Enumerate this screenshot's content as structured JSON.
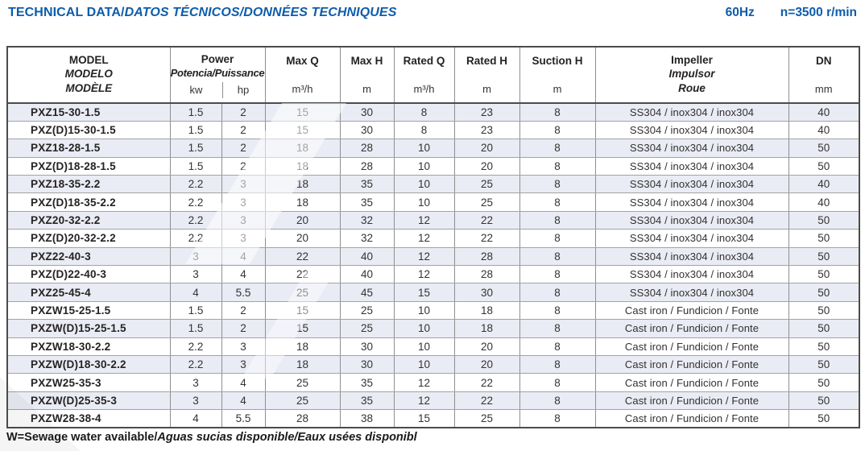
{
  "page": {
    "title_main": "TECHNICAL DATA/",
    "title_italic": "DATOS TÉCNICOS/DONNÉES TECHNIQUES",
    "frequency": "60Hz",
    "speed": "n=3500 r/min",
    "footer_main": "W=Sewage water available/",
    "footer_italic": "Aguas sucias disponible/Eaux usées disponibl",
    "accent_color": "#0d5cab",
    "row_shade_color": "#e9ecf4"
  },
  "table": {
    "header": {
      "model_lines": [
        "MODEL",
        "MODELO",
        "MODÈLE"
      ],
      "power_label": "Power",
      "power_sub": "Potencia/Puissance",
      "power_units": [
        "kw",
        "hp"
      ],
      "metric_cols": [
        {
          "label": "Max Q",
          "unit": "m³/h"
        },
        {
          "label": "Max H",
          "unit": "m"
        },
        {
          "label": "Rated Q",
          "unit": "m³/h"
        },
        {
          "label": "Rated H",
          "unit": "m"
        },
        {
          "label": "Suction H",
          "unit": "m"
        }
      ],
      "impeller_lines": [
        "Impeller",
        "Impulsor",
        "Roue"
      ],
      "dn": {
        "label": "DN",
        "unit": "mm"
      }
    },
    "rows": [
      {
        "model": "PXZ15-30-1.5",
        "kw": "1.5",
        "hp": "2",
        "max_q": "15",
        "max_h": "30",
        "rated_q": "8",
        "rated_h": "23",
        "suction_h": "8",
        "impeller": "SS304 / inox304 / inox304",
        "dn": "40"
      },
      {
        "model": "PXZ(D)15-30-1.5",
        "kw": "1.5",
        "hp": "2",
        "max_q": "15",
        "max_h": "30",
        "rated_q": "8",
        "rated_h": "23",
        "suction_h": "8",
        "impeller": "SS304 / inox304 / inox304",
        "dn": "40"
      },
      {
        "model": "PXZ18-28-1.5",
        "kw": "1.5",
        "hp": "2",
        "max_q": "18",
        "max_h": "28",
        "rated_q": "10",
        "rated_h": "20",
        "suction_h": "8",
        "impeller": "SS304 / inox304 / inox304",
        "dn": "50"
      },
      {
        "model": "PXZ(D)18-28-1.5",
        "kw": "1.5",
        "hp": "2",
        "max_q": "18",
        "max_h": "28",
        "rated_q": "10",
        "rated_h": "20",
        "suction_h": "8",
        "impeller": "SS304 / inox304 / inox304",
        "dn": "50"
      },
      {
        "model": "PXZ18-35-2.2",
        "kw": "2.2",
        "hp": "3",
        "max_q": "18",
        "max_h": "35",
        "rated_q": "10",
        "rated_h": "25",
        "suction_h": "8",
        "impeller": "SS304 / inox304 / inox304",
        "dn": "40"
      },
      {
        "model": "PXZ(D)18-35-2.2",
        "kw": "2.2",
        "hp": "3",
        "max_q": "18",
        "max_h": "35",
        "rated_q": "10",
        "rated_h": "25",
        "suction_h": "8",
        "impeller": "SS304 / inox304 / inox304",
        "dn": "40"
      },
      {
        "model": "PXZ20-32-2.2",
        "kw": "2.2",
        "hp": "3",
        "max_q": "20",
        "max_h": "32",
        "rated_q": "12",
        "rated_h": "22",
        "suction_h": "8",
        "impeller": "SS304 / inox304 / inox304",
        "dn": "50"
      },
      {
        "model": "PXZ(D)20-32-2.2",
        "kw": "2.2",
        "hp": "3",
        "max_q": "20",
        "max_h": "32",
        "rated_q": "12",
        "rated_h": "22",
        "suction_h": "8",
        "impeller": "SS304 / inox304 / inox304",
        "dn": "50"
      },
      {
        "model": "PXZ22-40-3",
        "kw": "3",
        "hp": "4",
        "max_q": "22",
        "max_h": "40",
        "rated_q": "12",
        "rated_h": "28",
        "suction_h": "8",
        "impeller": "SS304 / inox304 / inox304",
        "dn": "50"
      },
      {
        "model": "PXZ(D)22-40-3",
        "kw": "3",
        "hp": "4",
        "max_q": "22",
        "max_h": "40",
        "rated_q": "12",
        "rated_h": "28",
        "suction_h": "8",
        "impeller": "SS304 / inox304 / inox304",
        "dn": "50"
      },
      {
        "model": "PXZ25-45-4",
        "kw": "4",
        "hp": "5.5",
        "max_q": "25",
        "max_h": "45",
        "rated_q": "15",
        "rated_h": "30",
        "suction_h": "8",
        "impeller": "SS304 / inox304 / inox304",
        "dn": "50"
      },
      {
        "model": "PXZW15-25-1.5",
        "kw": "1.5",
        "hp": "2",
        "max_q": "15",
        "max_h": "25",
        "rated_q": "10",
        "rated_h": "18",
        "suction_h": "8",
        "impeller": "Cast iron / Fundicion / Fonte",
        "dn": "50"
      },
      {
        "model": "PXZW(D)15-25-1.5",
        "kw": "1.5",
        "hp": "2",
        "max_q": "15",
        "max_h": "25",
        "rated_q": "10",
        "rated_h": "18",
        "suction_h": "8",
        "impeller": "Cast iron / Fundicion / Fonte",
        "dn": "50"
      },
      {
        "model": "PXZW18-30-2.2",
        "kw": "2.2",
        "hp": "3",
        "max_q": "18",
        "max_h": "30",
        "rated_q": "10",
        "rated_h": "20",
        "suction_h": "8",
        "impeller": "Cast iron / Fundicion / Fonte",
        "dn": "50"
      },
      {
        "model": "PXZW(D)18-30-2.2",
        "kw": "2.2",
        "hp": "3",
        "max_q": "18",
        "max_h": "30",
        "rated_q": "10",
        "rated_h": "20",
        "suction_h": "8",
        "impeller": "Cast iron / Fundicion / Fonte",
        "dn": "50"
      },
      {
        "model": "PXZW25-35-3",
        "kw": "3",
        "hp": "4",
        "max_q": "25",
        "max_h": "35",
        "rated_q": "12",
        "rated_h": "22",
        "suction_h": "8",
        "impeller": "Cast iron / Fundicion / Fonte",
        "dn": "50"
      },
      {
        "model": "PXZW(D)25-35-3",
        "kw": "3",
        "hp": "4",
        "max_q": "25",
        "max_h": "35",
        "rated_q": "12",
        "rated_h": "22",
        "suction_h": "8",
        "impeller": "Cast iron / Fundicion / Fonte",
        "dn": "50"
      },
      {
        "model": "PXZW28-38-4",
        "kw": "4",
        "hp": "5.5",
        "max_q": "28",
        "max_h": "38",
        "rated_q": "15",
        "rated_h": "25",
        "suction_h": "8",
        "impeller": "Cast iron / Fundicion / Fonte",
        "dn": "50"
      }
    ]
  }
}
